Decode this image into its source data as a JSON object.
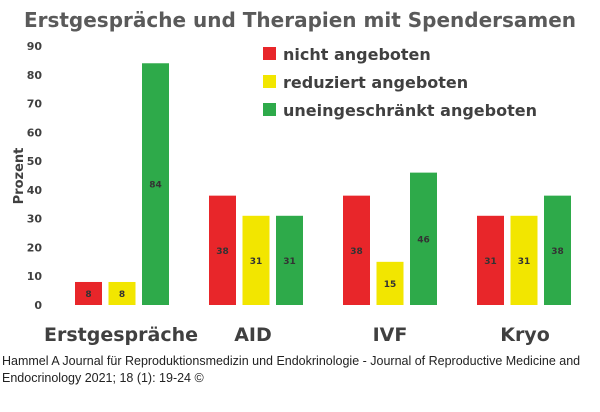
{
  "chart_data": {
    "type": "bar",
    "title": "Erstgespräche und Therapien mit Spendersamen",
    "ylabel": "Prozent",
    "xlabel": "",
    "ylim": [
      0,
      90
    ],
    "yticks": [
      0,
      10,
      20,
      30,
      40,
      50,
      60,
      70,
      80,
      90
    ],
    "categories": [
      "Erstgespräche",
      "AID",
      "IVF",
      "Kryo"
    ],
    "series": [
      {
        "name": "nicht angeboten",
        "color": "#e8262a",
        "values": [
          8,
          38,
          38,
          31
        ]
      },
      {
        "name": "reduziert angeboten",
        "color": "#f2e600",
        "values": [
          8,
          31,
          15,
          31
        ]
      },
      {
        "name": "uneingeschränkt angeboten",
        "color": "#2eaa4a",
        "values": [
          84,
          31,
          46,
          38
        ]
      }
    ],
    "legend_position": "top-right",
    "grid": false
  },
  "caption": "Hammel A Journal für Reproduktionsmedizin und Endokrinologie - Journal of Reproductive Medicine and Endocrinology 2021; 18 (1): 19-24 ©"
}
